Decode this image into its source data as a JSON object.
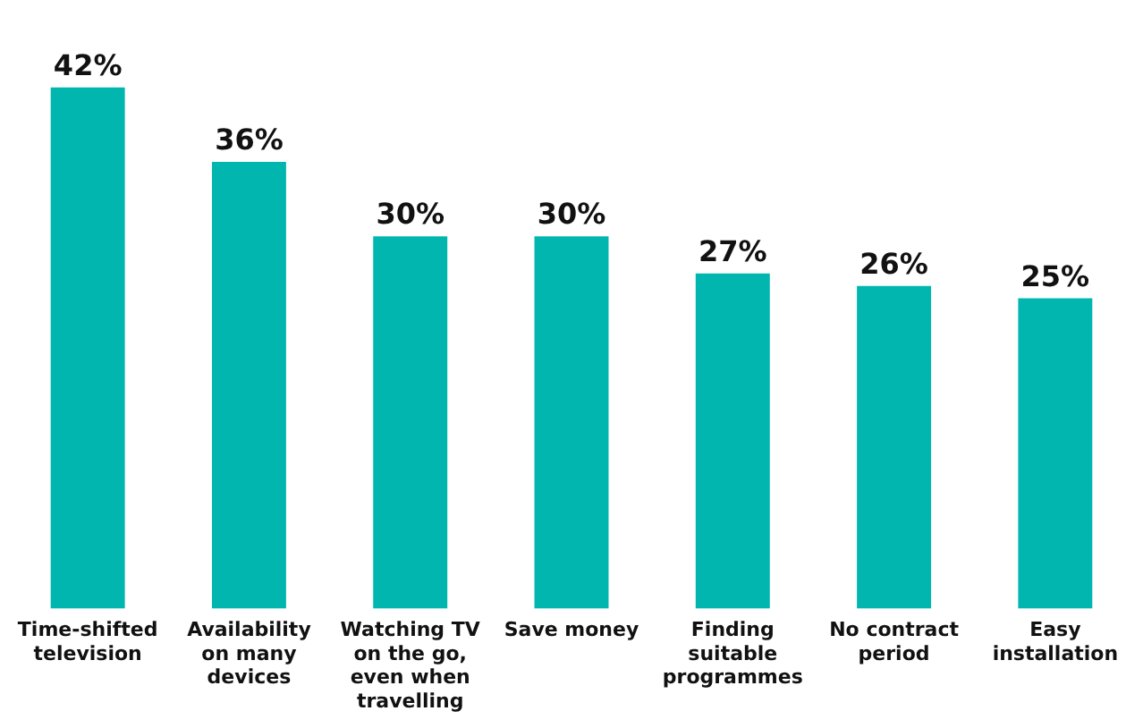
{
  "chart_data": {
    "type": "bar",
    "categories": [
      "Time-shifted television",
      "Availability on many devices",
      "Watching TV on the go, even when travelling",
      "Save money",
      "Finding suitable programmes",
      "No contract period",
      "Easy installation"
    ],
    "values": [
      42,
      36,
      30,
      30,
      27,
      26,
      25
    ],
    "value_labels": [
      "42%",
      "36%",
      "30%",
      "30%",
      "27%",
      "26%",
      "25%"
    ],
    "color": "#00b6ae",
    "grid": false,
    "legend": false
  }
}
